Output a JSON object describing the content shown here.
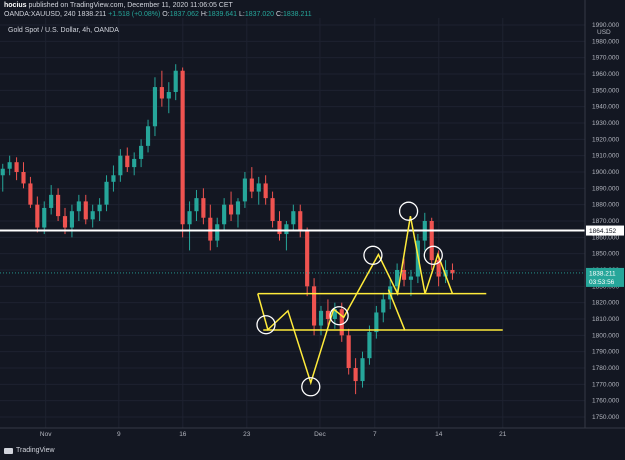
{
  "header": {
    "author": "hocius",
    "published": "published on TradingView.com, December 11, 2020 11:06:05 CET",
    "symbol": "OANDA:XAUUSD, 240",
    "last": "1838.211",
    "change": "+1.518 (+0.08%)",
    "open_label": "O:",
    "open": "1837.062",
    "high_label": "H:",
    "high": "1839.641",
    "low_label": "L:",
    "low": "1837.020",
    "close_label": "C:",
    "close": "1838.211"
  },
  "chart_title": "Gold Spot / U.S. Dollar, 4h, OANDA",
  "footer": {
    "brand": "TradingView"
  },
  "colors": {
    "up": "#26a69a",
    "down": "#ef5350",
    "background": "#131722",
    "annotation": "#ffeb3b",
    "level": "#ffffff"
  },
  "chart_data": {
    "type": "candlestick",
    "currency": "USD",
    "y_axis_ticks": [
      1990,
      1980,
      1970,
      1960,
      1950,
      1940,
      1930,
      1920,
      1910,
      1900,
      1890,
      1880,
      1870,
      1860,
      1850,
      1840,
      1830,
      1820,
      1810,
      1800,
      1790,
      1780,
      1770,
      1760,
      1750
    ],
    "y_tick_labels": [
      "1990.000",
      "1980.000",
      "1970.000",
      "1960.000",
      "1950.000",
      "1940.000",
      "1930.000",
      "1920.000",
      "1910.000",
      "1900.000",
      "1890.000",
      "1880.000",
      "1870.000",
      "1860.000",
      "1850.000",
      "1840.000",
      "1830.000",
      "1820.000",
      "1810.000",
      "1800.000",
      "1790.000",
      "1780.000",
      "1770.000",
      "1760.000",
      "1750.000"
    ],
    "ylim": [
      1744,
      1994
    ],
    "x_tick_labels": [
      "Nov",
      "9",
      "16",
      "23",
      "Dec",
      "7",
      "14",
      "21"
    ],
    "x_tick_days": [
      5,
      13,
      20,
      27,
      35,
      41,
      48,
      55
    ],
    "xlim": [
      0,
      64
    ],
    "last_price": 1838.211,
    "last_price_label": "1838.211",
    "countdown": "03:53:56",
    "horizontal_level": 1864.152,
    "horizontal_level_label": "1864.152",
    "support_lines": [
      {
        "from_day": 28.2,
        "to_day": 53.2,
        "price": 1825.5
      },
      {
        "from_day": 28.8,
        "to_day": 55.0,
        "price": 1803.3
      }
    ],
    "zigzag": [
      {
        "day": 28.2,
        "price": 1825.5
      },
      {
        "day": 29.3,
        "price": 1803.5
      },
      {
        "day": 31.5,
        "price": 1815.0
      },
      {
        "day": 34.0,
        "price": 1771.0
      },
      {
        "day": 36.5,
        "price": 1816.0
      },
      {
        "day": 37.6,
        "price": 1811.0
      },
      {
        "day": 41.4,
        "price": 1849.5
      },
      {
        "day": 43.5,
        "price": 1825.5
      },
      {
        "day": 44.9,
        "price": 1873.0
      },
      {
        "day": 46.5,
        "price": 1825.5
      },
      {
        "day": 47.9,
        "price": 1849.5
      },
      {
        "day": 49.5,
        "price": 1825.5
      }
    ],
    "zigzag_extra": [
      {
        "day": 42.5,
        "price": 1828.0
      },
      {
        "day": 44.3,
        "price": 1803.0
      }
    ],
    "circles": [
      {
        "day": 29.1,
        "price": 1806.5
      },
      {
        "day": 34.0,
        "price": 1768.5
      },
      {
        "day": 37.1,
        "price": 1812.0
      },
      {
        "day": 40.8,
        "price": 1849.0
      },
      {
        "day": 44.7,
        "price": 1876.0
      },
      {
        "day": 47.4,
        "price": 1849.0
      }
    ],
    "candles": [
      [
        1898,
        1905,
        1888,
        1902
      ],
      [
        1902,
        1910,
        1898,
        1906
      ],
      [
        1906,
        1909,
        1895,
        1900
      ],
      [
        1900,
        1906,
        1890,
        1893
      ],
      [
        1893,
        1897,
        1878,
        1880
      ],
      [
        1880,
        1885,
        1863,
        1866
      ],
      [
        1866,
        1882,
        1862,
        1878
      ],
      [
        1878,
        1892,
        1874,
        1886
      ],
      [
        1886,
        1890,
        1870,
        1873
      ],
      [
        1873,
        1878,
        1862,
        1866
      ],
      [
        1866,
        1880,
        1860,
        1876
      ],
      [
        1876,
        1886,
        1870,
        1882
      ],
      [
        1882,
        1886,
        1868,
        1871
      ],
      [
        1871,
        1880,
        1866,
        1876
      ],
      [
        1876,
        1884,
        1870,
        1880
      ],
      [
        1880,
        1898,
        1876,
        1894
      ],
      [
        1894,
        1904,
        1888,
        1898
      ],
      [
        1898,
        1914,
        1894,
        1910
      ],
      [
        1910,
        1915,
        1900,
        1903
      ],
      [
        1903,
        1912,
        1898,
        1908
      ],
      [
        1908,
        1920,
        1903,
        1916
      ],
      [
        1916,
        1932,
        1912,
        1928
      ],
      [
        1928,
        1958,
        1922,
        1952
      ],
      [
        1952,
        1962,
        1940,
        1945
      ],
      [
        1945,
        1955,
        1936,
        1949
      ],
      [
        1949,
        1966,
        1944,
        1962
      ],
      [
        1962,
        1964,
        1860,
        1868
      ],
      [
        1868,
        1882,
        1852,
        1876
      ],
      [
        1876,
        1889,
        1870,
        1884
      ],
      [
        1884,
        1890,
        1868,
        1872
      ],
      [
        1872,
        1880,
        1852,
        1858
      ],
      [
        1858,
        1872,
        1854,
        1868
      ],
      [
        1868,
        1884,
        1864,
        1880
      ],
      [
        1880,
        1888,
        1870,
        1874
      ],
      [
        1874,
        1884,
        1866,
        1882
      ],
      [
        1882,
        1900,
        1878,
        1896
      ],
      [
        1896,
        1903,
        1884,
        1888
      ],
      [
        1888,
        1897,
        1880,
        1893
      ],
      [
        1893,
        1898,
        1880,
        1884
      ],
      [
        1884,
        1888,
        1866,
        1870
      ],
      [
        1870,
        1876,
        1858,
        1862
      ],
      [
        1862,
        1870,
        1852,
        1868
      ],
      [
        1868,
        1880,
        1864,
        1876
      ],
      [
        1876,
        1880,
        1860,
        1864
      ],
      [
        1864,
        1866,
        1824,
        1830
      ],
      [
        1830,
        1835,
        1800,
        1806
      ],
      [
        1806,
        1818,
        1800,
        1815
      ],
      [
        1815,
        1822,
        1806,
        1810
      ],
      [
        1810,
        1820,
        1804,
        1816
      ],
      [
        1816,
        1820,
        1796,
        1800
      ],
      [
        1800,
        1804,
        1776,
        1780
      ],
      [
        1780,
        1786,
        1764,
        1772
      ],
      [
        1772,
        1790,
        1768,
        1786
      ],
      [
        1786,
        1806,
        1782,
        1802
      ],
      [
        1802,
        1818,
        1798,
        1814
      ],
      [
        1814,
        1826,
        1808,
        1822
      ],
      [
        1822,
        1834,
        1816,
        1830
      ],
      [
        1830,
        1844,
        1826,
        1840
      ],
      [
        1840,
        1847,
        1830,
        1834
      ],
      [
        1834,
        1840,
        1824,
        1836
      ],
      [
        1836,
        1862,
        1832,
        1858
      ],
      [
        1858,
        1875,
        1852,
        1870
      ],
      [
        1870,
        1872,
        1840,
        1846
      ],
      [
        1846,
        1852,
        1830,
        1836
      ],
      [
        1836,
        1846,
        1832,
        1840
      ],
      [
        1840,
        1844,
        1834,
        1838
      ]
    ]
  }
}
